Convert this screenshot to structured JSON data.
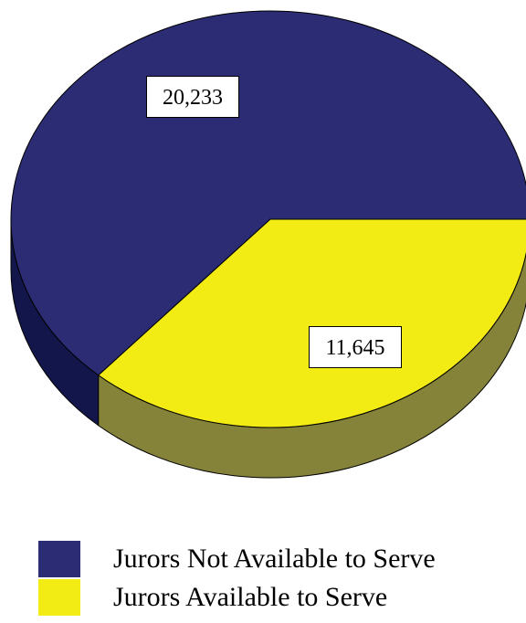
{
  "chart_data": {
    "type": "pie",
    "style": "3d",
    "slices": [
      {
        "label": "Jurors Not Available to Serve",
        "value": 20233,
        "display": "20,233",
        "color": "#2b2c73",
        "side_color": "#13164a"
      },
      {
        "label": "Jurors Available to Serve",
        "value": 11645,
        "display": "11,645",
        "color": "#f3ec14",
        "side_color": "#85823a"
      }
    ],
    "legend_position": "bottom"
  }
}
